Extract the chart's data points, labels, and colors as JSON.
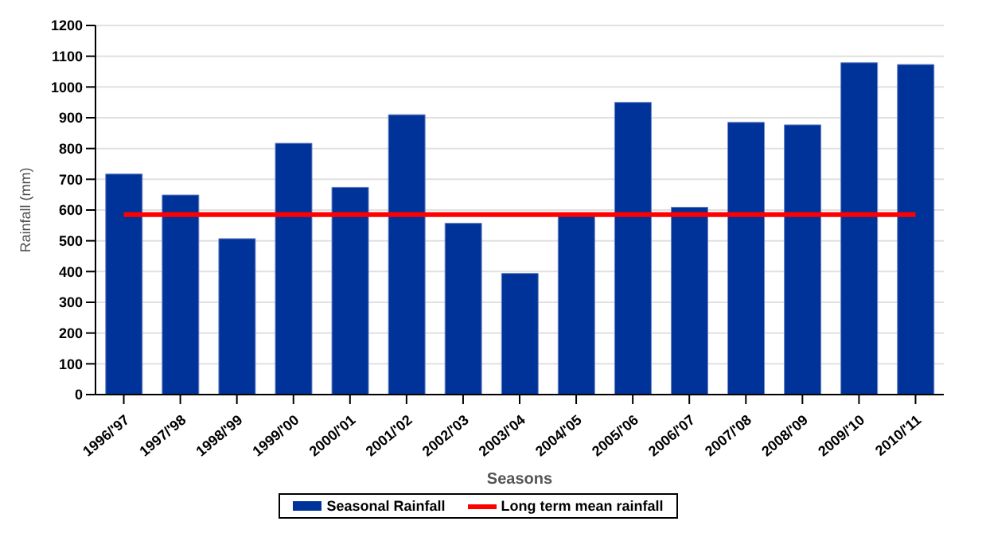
{
  "chart_data": {
    "type": "bar",
    "xlabel": "Seasons",
    "ylabel": "Rainfall (mm)",
    "categories": [
      "1996/'97",
      "1997/'98",
      "1998/'99",
      "1999/'00",
      "2000/'01",
      "2001/'02",
      "2002/'03",
      "2003/'04",
      "2004/'05",
      "2005/'06",
      "2006/'07",
      "2007/'08",
      "2008/'09",
      "2009/'10",
      "2010/'11"
    ],
    "series": [
      {
        "name": "Seasonal Rainfall",
        "color": "#003399",
        "values": [
          717,
          649,
          507,
          817,
          674,
          910,
          557,
          394,
          582,
          950,
          609,
          885,
          877,
          1079,
          1073
        ]
      },
      {
        "name": "Long term mean rainfall",
        "type": "line",
        "color": "#ff0000",
        "values": [
          585,
          585,
          585,
          585,
          585,
          585,
          585,
          585,
          585,
          585,
          585,
          585,
          585,
          585,
          585
        ]
      }
    ],
    "ylim": [
      0,
      1200
    ],
    "yticks": [
      0,
      100,
      200,
      300,
      400,
      500,
      600,
      700,
      800,
      900,
      1000,
      1100,
      1200
    ],
    "grid": "y",
    "legend": "bottom",
    "marker": "none"
  }
}
